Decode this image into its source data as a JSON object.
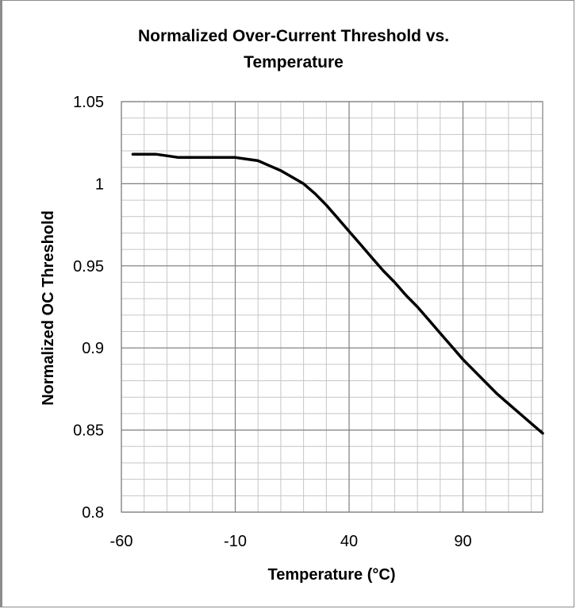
{
  "chart_data": {
    "type": "line",
    "title_line1": "Normalized Over-Current Threshold vs.",
    "title_line2": "Temperature",
    "xlabel": "Temperature (°C)",
    "ylabel": "Normalized  OC Threshold",
    "xlim": [
      -60,
      125
    ],
    "ylim": [
      0.8,
      1.05
    ],
    "xticks": [
      -60,
      -10,
      40,
      90
    ],
    "xtick_labels": [
      "-60",
      "-10",
      "40",
      "90"
    ],
    "yticks": [
      0.8,
      0.85,
      0.9,
      0.95,
      1.0,
      1.05
    ],
    "ytick_labels": [
      "0.8",
      "0.85",
      "0.9",
      "0.95",
      "1",
      "1.05"
    ],
    "grid": true,
    "legend": "none",
    "line_color": "#000000",
    "series": [
      {
        "x": [
          -55,
          -50,
          -45,
          -40,
          -35,
          -30,
          -25,
          -20,
          -15,
          -10,
          -5,
          0,
          5,
          10,
          15,
          20,
          25,
          30,
          35,
          40,
          45,
          50,
          55,
          60,
          65,
          70,
          75,
          80,
          85,
          90,
          95,
          100,
          105,
          110,
          115,
          120,
          125
        ],
        "y": [
          1.018,
          1.018,
          1.018,
          1.017,
          1.016,
          1.016,
          1.016,
          1.016,
          1.016,
          1.016,
          1.015,
          1.014,
          1.011,
          1.008,
          1.004,
          1.0,
          0.994,
          0.987,
          0.979,
          0.971,
          0.963,
          0.955,
          0.947,
          0.94,
          0.932,
          0.925,
          0.917,
          0.909,
          0.901,
          0.893,
          0.886,
          0.879,
          0.872,
          0.866,
          0.86,
          0.854,
          0.848
        ]
      }
    ]
  }
}
